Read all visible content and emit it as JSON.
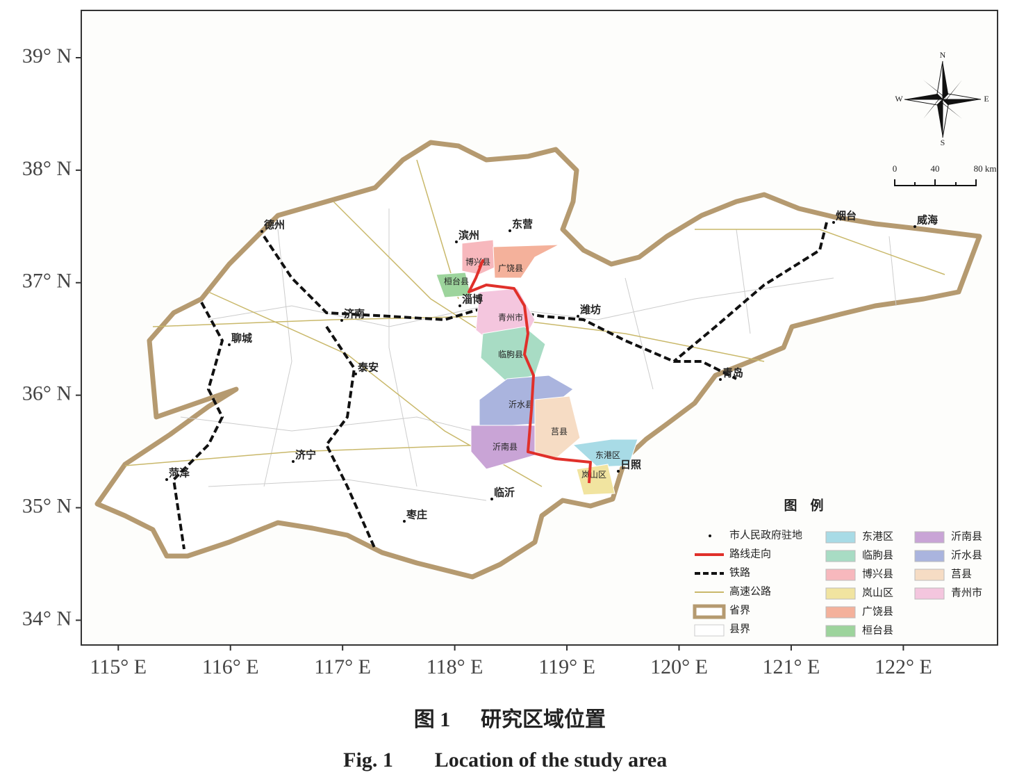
{
  "map": {
    "xlim": [
      114.67,
      122.84
    ],
    "ylim": [
      33.78,
      39.42
    ],
    "xticks": [
      {
        "value": 115,
        "label": "115° E"
      },
      {
        "value": 116,
        "label": "116° E"
      },
      {
        "value": 117,
        "label": "117° E"
      },
      {
        "value": 118,
        "label": "118° E"
      },
      {
        "value": 119,
        "label": "119° E"
      },
      {
        "value": 120,
        "label": "120° E"
      },
      {
        "value": 121,
        "label": "121° E"
      },
      {
        "value": 122,
        "label": "122° E"
      }
    ],
    "yticks": [
      {
        "value": 34,
        "label": "34° N"
      },
      {
        "value": 35,
        "label": "35° N"
      },
      {
        "value": 36,
        "label": "36° N"
      },
      {
        "value": 37,
        "label": "37° N"
      },
      {
        "value": 38,
        "label": "38° N"
      },
      {
        "value": 39,
        "label": "39° N"
      }
    ],
    "cities": [
      "滨州",
      "东营",
      "德州",
      "烟台",
      "威海",
      "济南",
      "淄博",
      "潍坊",
      "聊城",
      "泰安",
      "青岛",
      "济宁",
      "菏泽",
      "临沂",
      "日照",
      "枣庄"
    ],
    "counties": [
      "博兴县",
      "广饶县",
      "桓台县",
      "青州市",
      "临朐县",
      "沂水县",
      "莒县",
      "沂南县",
      "东港区",
      "岚山区"
    ]
  },
  "compass": {
    "n": "N",
    "s": "S",
    "w": "W",
    "e": "E"
  },
  "scale_bar": {
    "labels": [
      "0",
      "40",
      "80 km"
    ]
  },
  "legend": {
    "title": "图　例",
    "symbols": [
      "市人民政府驻地",
      "路线走向",
      "铁路",
      "高速公路",
      "省界",
      "县界"
    ],
    "areas": [
      {
        "label": "东港区",
        "color": "#a8dbe6"
      },
      {
        "label": "临朐县",
        "color": "#a8dcc4"
      },
      {
        "label": "博兴县",
        "color": "#f7b8bd"
      },
      {
        "label": "岚山区",
        "color": "#f1e4a0"
      },
      {
        "label": "广饶县",
        "color": "#f4b19b"
      },
      {
        "label": "桓台县",
        "color": "#9dd49c"
      },
      {
        "label": "沂南县",
        "color": "#c9a4d6"
      },
      {
        "label": "沂水县",
        "color": "#aab4de"
      },
      {
        "label": "莒县",
        "color": "#f6dcc4"
      },
      {
        "label": "青州市",
        "color": "#f4c6de"
      }
    ]
  },
  "caption": {
    "label_zh": "图 1",
    "title_zh": "研究区域位置",
    "label_en": "Fig. 1",
    "title_en": "Location of the study area"
  }
}
